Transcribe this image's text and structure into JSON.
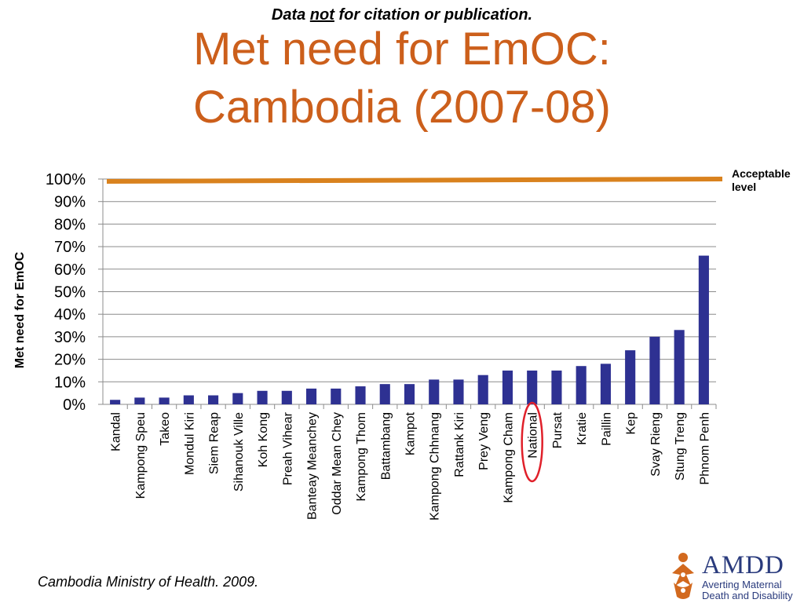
{
  "header": {
    "notice_prefix": "Data ",
    "notice_emph": "not",
    "notice_suffix": " for citation or publication.",
    "title_line1": "Met need for EmOC:",
    "title_line2": "Cambodia (2007-08)"
  },
  "source": "Cambodia Ministry of Health.  2009.",
  "logo": {
    "name": "AMDD",
    "subtitle_line1": "Averting Maternal",
    "subtitle_line2": "Death and Disability",
    "icon": "amdd-figures-icon"
  },
  "chart_data": {
    "type": "bar",
    "title": "Met need for EmOC: Cambodia (2007-08)",
    "ylabel": "Met need for EmOC",
    "xlabel": "",
    "ylim": [
      0,
      100
    ],
    "yticks": [
      "0%",
      "10%",
      "20%",
      "30%",
      "40%",
      "50%",
      "60%",
      "70%",
      "80%",
      "90%",
      "100%"
    ],
    "grid": true,
    "bar_color": "#2e3192",
    "categories": [
      "Kandal",
      "Kampong Speu",
      "Takeo",
      "Mondul Kiri",
      "Siem Reap",
      "Sihanouk Ville",
      "Koh Kong",
      "Preah Vihear",
      "Banteay Meanchey",
      "Oddar Mean Chey",
      "Kampong Thom",
      "Battambang",
      "Kampot",
      "Kampong Chhnang",
      "Rattank Kiri",
      "Prey Veng",
      "Kampong Cham",
      "National",
      "Pursat",
      "Kratie",
      "Paillin",
      "Kep",
      "Svay Rieng",
      "Stung Treng",
      "Phnom Penh"
    ],
    "values": [
      2,
      3,
      3,
      4,
      4,
      5,
      6,
      6,
      7,
      7,
      8,
      9,
      9,
      11,
      11,
      13,
      15,
      15,
      15,
      17,
      18,
      24,
      30,
      33,
      66
    ],
    "highlighted_category": "National",
    "highlight_color": "#e0202a",
    "reference_line": {
      "value": 100,
      "label_line1": "Acceptable",
      "label_line2": "level",
      "color": "#d9821e"
    }
  }
}
